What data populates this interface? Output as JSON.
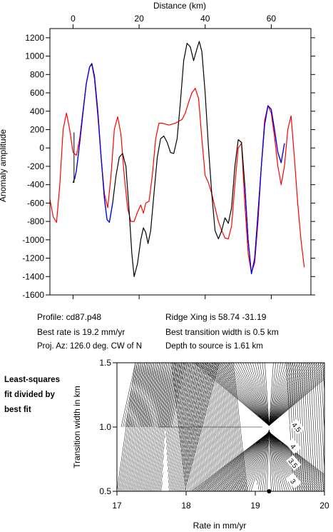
{
  "chart_data": [
    {
      "type": "line",
      "title": "",
      "xlabel": "Distance (km)",
      "ylabel": "Anomaly amplitude",
      "xlim": [
        -7,
        72
      ],
      "ylim": [
        -1600,
        1300
      ],
      "xticks": [
        0,
        20,
        40,
        60
      ],
      "yticks": [
        1200,
        1000,
        800,
        600,
        400,
        200,
        0,
        -200,
        -400,
        -600,
        -800,
        -1000,
        -1200,
        -1400,
        -1600
      ],
      "grid": false,
      "series": [
        {
          "color": "#000000",
          "x": [
            0,
            0.4,
            1,
            2,
            3,
            4,
            5,
            5.7,
            6.5,
            7.5,
            8.5,
            9.5,
            10.3,
            11,
            12,
            13,
            14,
            15,
            16,
            17,
            17.8,
            18.5,
            19.5,
            20.5,
            21.3,
            22,
            22.7,
            23.5,
            24.5,
            25.5,
            26.5,
            27.5,
            28.5,
            29.5,
            30.5,
            31.5,
            32.5,
            33.5,
            34.5,
            35.5,
            36.5,
            37.5,
            38.2,
            39,
            40,
            41,
            42,
            43,
            44,
            45,
            46,
            47,
            48,
            49,
            50,
            51,
            52,
            53,
            54,
            55,
            56,
            57,
            58,
            59,
            60,
            61,
            62,
            63,
            64
          ],
          "y": [
            -380,
            -340,
            -250,
            50,
            380,
            700,
            880,
            920,
            780,
            400,
            -100,
            -550,
            -780,
            -810,
            -600,
            -300,
            -100,
            -60,
            -200,
            -700,
            -1150,
            -1400,
            -1260,
            -1000,
            -870,
            -920,
            -1040,
            -900,
            -500,
            -100,
            100,
            130,
            60,
            -50,
            -60,
            100,
            500,
            950,
            1140,
            1100,
            950,
            1080,
            1160,
            1050,
            600,
            0,
            -500,
            -900,
            -990,
            -900,
            -760,
            -820,
            -650,
            -200,
            90,
            60,
            -400,
            -1000,
            -1370,
            -1200,
            -700,
            -200,
            250,
            460,
            420,
            200,
            -50,
            -160,
            50
          ]
        },
        {
          "color": "#0000ff",
          "x": [
            0.5,
            1,
            2,
            3,
            4,
            5,
            5.7,
            6.5,
            7.5,
            8.5,
            9.5,
            10.3,
            11,
            12
          ],
          "y": [
            -340,
            -250,
            50,
            380,
            700,
            880,
            920,
            780,
            400,
            -100,
            -550,
            -780,
            -810,
            -600
          ]
        },
        {
          "color": "#0000ff",
          "x": [
            52,
            53,
            54,
            55,
            56,
            57,
            58,
            59,
            60,
            61,
            62,
            63,
            64
          ],
          "y": [
            -400,
            -1000,
            -1370,
            -1200,
            -700,
            -200,
            250,
            460,
            420,
            200,
            -50,
            -160,
            50
          ]
        },
        {
          "color": "#ff0000",
          "x": [
            -7,
            -6,
            -5,
            -4,
            -3,
            -2,
            -1,
            0,
            1,
            2,
            3,
            4,
            5,
            5.7,
            6.5,
            7.5,
            8.5,
            9.5,
            10.5,
            11.5,
            12.5,
            13.5,
            14.5,
            15.5,
            16.5,
            17.5,
            18.5,
            19.5,
            20.5,
            21.3,
            22,
            23,
            24,
            25,
            26,
            27,
            28,
            29,
            30,
            31,
            32,
            33,
            34,
            35,
            36,
            37,
            38,
            39,
            40,
            41,
            42,
            43,
            44,
            45,
            46,
            47,
            48,
            49,
            50,
            51,
            52,
            53,
            54,
            55,
            56,
            57,
            58,
            59,
            60,
            61,
            62,
            63,
            64,
            65,
            66,
            67,
            68,
            69,
            70
          ],
          "y": [
            -560,
            -750,
            -810,
            -400,
            200,
            380,
            200,
            -50,
            -80,
            100,
            400,
            700,
            880,
            910,
            750,
            350,
            -100,
            -500,
            -650,
            -300,
            200,
            340,
            150,
            -300,
            -650,
            -800,
            -800,
            -700,
            -620,
            -710,
            -600,
            -580,
            -300,
            100,
            270,
            270,
            260,
            250,
            260,
            270,
            290,
            310,
            380,
            500,
            600,
            650,
            540,
            100,
            -300,
            -380,
            -500,
            -650,
            -800,
            -900,
            -980,
            -990,
            -850,
            -400,
            0,
            50,
            -600,
            -1150,
            -1360,
            -1250,
            -800,
            -200,
            300,
            460,
            380,
            120,
            -200,
            -400,
            -200,
            200,
            350,
            -100,
            -600,
            -1000,
            -1300
          ]
        }
      ]
    },
    {
      "type": "contour",
      "xlabel": "Rate in mm/yr",
      "ylabel": "Transition width in km",
      "xlim": [
        17,
        20
      ],
      "ylim": [
        0.5,
        1.5
      ],
      "xticks": [
        17,
        18,
        19,
        20
      ],
      "yticks": [
        0.5,
        1.0,
        1.5
      ],
      "contour_labels": [
        "4.5",
        "4",
        "3.5",
        "3"
      ],
      "best_fit": {
        "rate": 19.2,
        "width": 0.5
      }
    }
  ],
  "info": {
    "profile": "Profile: cd87.p48",
    "best_rate": "Best rate is 19.2 mm/yr",
    "proj_az": "Proj. Az: 126.0 deg. CW of N",
    "ridge_xing": "Ridge Xing is 58.74 -31.19",
    "best_transition": "Best transition width is 0.5 km",
    "depth": "Depth to source is    1.61 km"
  },
  "side_note": [
    "Least-squares",
    "fit divided by",
    "best fit"
  ]
}
